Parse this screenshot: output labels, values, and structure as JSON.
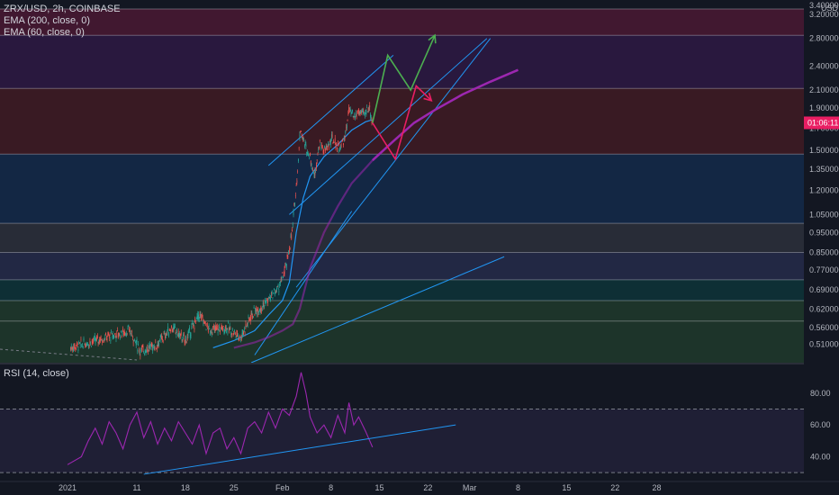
{
  "header": {
    "symbol_line": "ZRX/USD, 2h, COINBASE",
    "indicators": [
      "EMA (200, close, 0)",
      "EMA (60, close, 0)"
    ],
    "rsi_label": "RSI (14, close)"
  },
  "colors": {
    "background": "#131722",
    "ema200": "#9c27b0",
    "ema60": "#2196f3",
    "candle_up": "#26a69a",
    "candle_down": "#ef5350",
    "rsi_line": "#9c27b0",
    "trend_line": "#2196f3",
    "arrow_up": "#4caf50",
    "arrow_down": "#e91e63",
    "price_tag": "#e91e63"
  },
  "chart_data": [
    {
      "type": "candlestick",
      "title": "ZRX/USD, 2h, COINBASE",
      "y_scale": "log",
      "y_unit": "USD",
      "ylim": [
        0.46,
        3.4
      ],
      "y_ticks": [
        "3.400000",
        "3.200000",
        "2.800000",
        "2.400000",
        "2.100000",
        "1.900000",
        "1.700000",
        "1.500000",
        "1.350000",
        "1.200000",
        "1.050000",
        "0.950000",
        "0.850000",
        "0.770000",
        "0.690000",
        "0.620000",
        "0.560000",
        "0.510000"
      ],
      "x_ticks": [
        "2021",
        "11",
        "18",
        "25",
        "Feb",
        "8",
        "15",
        "22",
        "Mar",
        "8",
        "15",
        "22",
        "28"
      ],
      "last_price_label": "01:06:11",
      "last_price": 1.75,
      "price_path": [
        {
          "x": 0.45,
          "y": 0.5
        },
        {
          "x": 9,
          "y": 0.55
        },
        {
          "x": 10.5,
          "y": 0.49
        },
        {
          "x": 13,
          "y": 0.51
        },
        {
          "x": 15,
          "y": 0.56
        },
        {
          "x": 17,
          "y": 0.52
        },
        {
          "x": 19,
          "y": 0.6
        },
        {
          "x": 20.5,
          "y": 0.55
        },
        {
          "x": 23,
          "y": 0.56
        },
        {
          "x": 25,
          "y": 0.53
        },
        {
          "x": 26.5,
          "y": 0.6
        },
        {
          "x": 28.5,
          "y": 0.64
        },
        {
          "x": 30.5,
          "y": 0.7
        },
        {
          "x": 31.5,
          "y": 0.78
        },
        {
          "x": 32.4,
          "y": 0.95
        },
        {
          "x": 33.2,
          "y": 1.35
        },
        {
          "x": 33.6,
          "y": 1.7
        },
        {
          "x": 34.2,
          "y": 1.55
        },
        {
          "x": 35,
          "y": 1.45
        },
        {
          "x": 35.6,
          "y": 1.3
        },
        {
          "x": 36.3,
          "y": 1.55
        },
        {
          "x": 37.2,
          "y": 1.5
        },
        {
          "x": 38.2,
          "y": 1.6
        },
        {
          "x": 39.2,
          "y": 1.52
        },
        {
          "x": 40,
          "y": 1.6
        },
        {
          "x": 40.6,
          "y": 1.88
        },
        {
          "x": 41.3,
          "y": 1.8
        },
        {
          "x": 42,
          "y": 1.86
        },
        {
          "x": 42.8,
          "y": 1.83
        },
        {
          "x": 43.5,
          "y": 1.92
        },
        {
          "x": 44.0,
          "y": 1.75
        }
      ],
      "series": [
        {
          "name": "EMA (200, close, 0)",
          "points": [
            {
              "x": 24,
              "y": 0.5
            },
            {
              "x": 27,
              "y": 0.515
            },
            {
              "x": 29,
              "y": 0.53
            },
            {
              "x": 31,
              "y": 0.55
            },
            {
              "x": 32.5,
              "y": 0.57
            },
            {
              "x": 33.5,
              "y": 0.62
            },
            {
              "x": 35,
              "y": 0.78
            },
            {
              "x": 37,
              "y": 0.95
            },
            {
              "x": 39,
              "y": 1.1
            },
            {
              "x": 41,
              "y": 1.25
            },
            {
              "x": 43,
              "y": 1.36
            },
            {
              "x": 44,
              "y": 1.42
            }
          ]
        },
        {
          "name": "EMA (60, close, 0)",
          "points": [
            {
              "x": 21,
              "y": 0.5
            },
            {
              "x": 24,
              "y": 0.52
            },
            {
              "x": 27,
              "y": 0.55
            },
            {
              "x": 29,
              "y": 0.6
            },
            {
              "x": 31,
              "y": 0.65
            },
            {
              "x": 32,
              "y": 0.72
            },
            {
              "x": 33,
              "y": 0.95
            },
            {
              "x": 34,
              "y": 1.15
            },
            {
              "x": 35,
              "y": 1.3
            },
            {
              "x": 37,
              "y": 1.45
            },
            {
              "x": 39,
              "y": 1.55
            },
            {
              "x": 41,
              "y": 1.68
            },
            {
              "x": 43,
              "y": 1.76
            },
            {
              "x": 44,
              "y": 1.78
            }
          ]
        }
      ],
      "projection": {
        "ema200_forecast": [
          {
            "x": 44,
            "y": 1.42
          },
          {
            "x": 47,
            "y": 1.58
          },
          {
            "x": 50,
            "y": 1.75
          },
          {
            "x": 53,
            "y": 1.88
          },
          {
            "x": 57,
            "y": 2.05
          },
          {
            "x": 61,
            "y": 2.2
          },
          {
            "x": 65,
            "y": 2.35
          }
        ],
        "up_path": [
          {
            "x": 44,
            "y": 1.75
          },
          {
            "x": 46.2,
            "y": 2.55
          },
          {
            "x": 49.5,
            "y": 2.1
          },
          {
            "x": 53,
            "y": 2.85
          }
        ],
        "down_path": [
          {
            "x": 44,
            "y": 1.75
          },
          {
            "x": 47.3,
            "y": 1.43
          },
          {
            "x": 50.3,
            "y": 2.15
          },
          {
            "x": 52.5,
            "y": 1.98
          }
        ]
      },
      "trend_lines": [
        {
          "from": {
            "x": 29,
            "y": 1.38
          },
          "to": {
            "x": 47,
            "y": 2.55
          }
        },
        {
          "from": {
            "x": 32,
            "y": 1.05
          },
          "to": {
            "x": 60.5,
            "y": 2.8
          }
        },
        {
          "from": {
            "x": 26.5,
            "y": 0.46
          },
          "to": {
            "x": 63,
            "y": 0.83
          }
        },
        {
          "from": {
            "x": 27,
            "y": 0.48
          },
          "to": {
            "x": 41,
            "y": 1.07
          }
        },
        {
          "from": {
            "x": 33,
            "y": 0.7
          },
          "to": {
            "x": 61,
            "y": 2.8
          }
        }
      ],
      "bands": [
        {
          "from": 2.85,
          "to": 3.3,
          "color": "#e91e63"
        },
        {
          "from": 2.12,
          "to": 2.85,
          "color": "#7b1fa2"
        },
        {
          "from": 1.47,
          "to": 2.12,
          "color": "#c62828"
        },
        {
          "from": 1.0,
          "to": 1.47,
          "color": "#1565c0"
        },
        {
          "from": 0.85,
          "to": 1.0,
          "color": "#787b86"
        },
        {
          "from": 0.73,
          "to": 0.85,
          "color": "#5c6bc0"
        },
        {
          "from": 0.65,
          "to": 0.73,
          "color": "#00897b"
        },
        {
          "from": 0.46,
          "to": 0.65,
          "color": "#43a047"
        }
      ],
      "band_lines": [
        3.3,
        2.85,
        2.12,
        1.47,
        1.0,
        0.85,
        0.73,
        0.65,
        0.58
      ]
    },
    {
      "type": "line",
      "title": "RSI (14, close)",
      "ylim": [
        25,
        98
      ],
      "y_ticks": [
        "80.00",
        "60.00",
        "40.00"
      ],
      "levels": [
        70,
        30
      ],
      "rsi_path": [
        {
          "x": 0,
          "y": 35
        },
        {
          "x": 2,
          "y": 40
        },
        {
          "x": 3,
          "y": 50
        },
        {
          "x": 4,
          "y": 58
        },
        {
          "x": 5,
          "y": 48
        },
        {
          "x": 6,
          "y": 62
        },
        {
          "x": 7,
          "y": 55
        },
        {
          "x": 8,
          "y": 45
        },
        {
          "x": 9,
          "y": 60
        },
        {
          "x": 10,
          "y": 68
        },
        {
          "x": 11,
          "y": 52
        },
        {
          "x": 12,
          "y": 62
        },
        {
          "x": 13,
          "y": 48
        },
        {
          "x": 14,
          "y": 58
        },
        {
          "x": 15,
          "y": 50
        },
        {
          "x": 16,
          "y": 62
        },
        {
          "x": 17,
          "y": 55
        },
        {
          "x": 18,
          "y": 48
        },
        {
          "x": 19,
          "y": 60
        },
        {
          "x": 20,
          "y": 42
        },
        {
          "x": 21,
          "y": 55
        },
        {
          "x": 22,
          "y": 58
        },
        {
          "x": 23,
          "y": 45
        },
        {
          "x": 24,
          "y": 52
        },
        {
          "x": 25,
          "y": 42
        },
        {
          "x": 26,
          "y": 58
        },
        {
          "x": 27,
          "y": 62
        },
        {
          "x": 28,
          "y": 55
        },
        {
          "x": 29,
          "y": 68
        },
        {
          "x": 30,
          "y": 58
        },
        {
          "x": 31,
          "y": 70
        },
        {
          "x": 32,
          "y": 66
        },
        {
          "x": 33,
          "y": 78
        },
        {
          "x": 33.7,
          "y": 93
        },
        {
          "x": 34.4,
          "y": 80
        },
        {
          "x": 35,
          "y": 65
        },
        {
          "x": 36,
          "y": 55
        },
        {
          "x": 37,
          "y": 60
        },
        {
          "x": 38,
          "y": 52
        },
        {
          "x": 39,
          "y": 66
        },
        {
          "x": 40,
          "y": 55
        },
        {
          "x": 40.6,
          "y": 74
        },
        {
          "x": 41.3,
          "y": 60
        },
        {
          "x": 42,
          "y": 65
        },
        {
          "x": 43,
          "y": 56
        },
        {
          "x": 44,
          "y": 46
        }
      ],
      "trend_line": {
        "from": {
          "x": 11,
          "y": 29
        },
        "to": {
          "x": 56,
          "y": 60
        }
      }
    }
  ]
}
